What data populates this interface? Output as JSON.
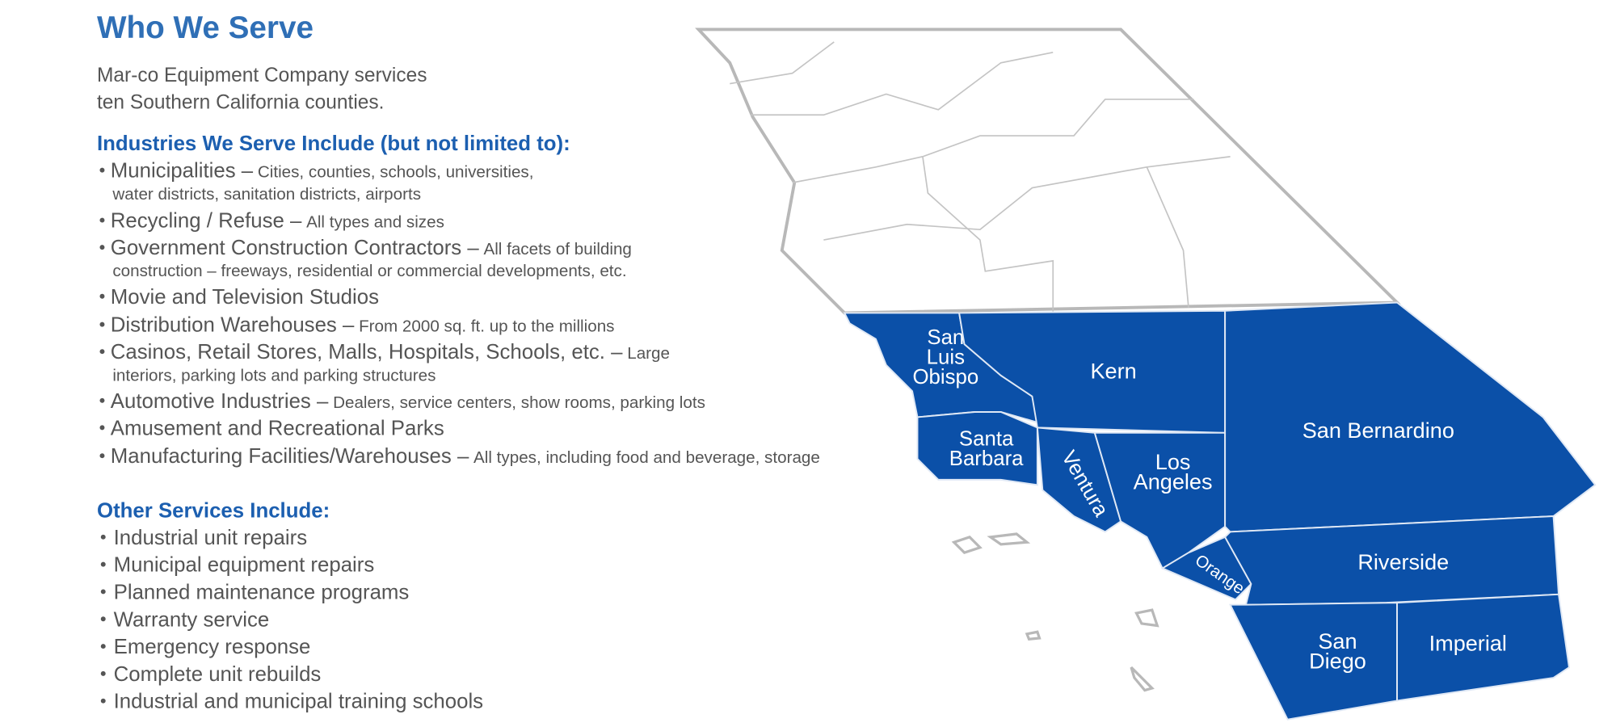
{
  "header": {
    "title": "Who We Serve",
    "intro": [
      "Mar-co Equipment Company services",
      "ten Southern California counties."
    ]
  },
  "industries": {
    "heading": "Industries We Serve Include (but not limited to):",
    "items": [
      {
        "name": "Municipalities –",
        "detail": [
          "Cities, counties, schools, universities,",
          "water districts, sanitation districts, airports"
        ]
      },
      {
        "name": "Recycling / Refuse –",
        "detail": [
          "All types and sizes"
        ]
      },
      {
        "name": "Government Construction Contractors –",
        "detail": [
          "All facets of building",
          "construction – freeways, residential or commercial developments, etc."
        ]
      },
      {
        "name": "Movie and Television Studios",
        "detail": []
      },
      {
        "name": "Distribution Warehouses –",
        "detail": [
          "From 2000 sq. ft. up to the millions"
        ]
      },
      {
        "name": "Casinos, Retail Stores, Malls, Hospitals, Schools, etc. –",
        "detail": [
          "Large",
          "interiors, parking lots and parking structures"
        ]
      },
      {
        "name": "Automotive Industries –",
        "detail": [
          "Dealers, service centers, show rooms, parking lots"
        ]
      },
      {
        "name": "Amusement and Recreational Parks",
        "detail": []
      },
      {
        "name": "Manufacturing Facilities/Warehouses –",
        "detail": [
          "All types, including food and beverage, storage"
        ]
      }
    ]
  },
  "services": {
    "heading": "Other Services Include:",
    "items": [
      "Industrial unit repairs",
      "Municipal equipment repairs",
      "Planned maintenance programs",
      "Warranty service",
      "Emergency response",
      "Complete unit rebuilds",
      "Industrial and municipal training schools"
    ]
  },
  "map": {
    "counties": [
      {
        "label": [
          "San",
          "Luis",
          "Obispo"
        ]
      },
      {
        "label": [
          "Kern"
        ]
      },
      {
        "label": [
          "Santa",
          "Barbara"
        ]
      },
      {
        "label": [
          "Ventura"
        ]
      },
      {
        "label": [
          "Los",
          "Angeles"
        ]
      },
      {
        "label": [
          "Orange"
        ]
      },
      {
        "label": [
          "San Bernardino"
        ]
      },
      {
        "label": [
          "Riverside"
        ]
      },
      {
        "label": [
          "San",
          "Diego"
        ]
      },
      {
        "label": [
          "Imperial"
        ]
      }
    ]
  }
}
